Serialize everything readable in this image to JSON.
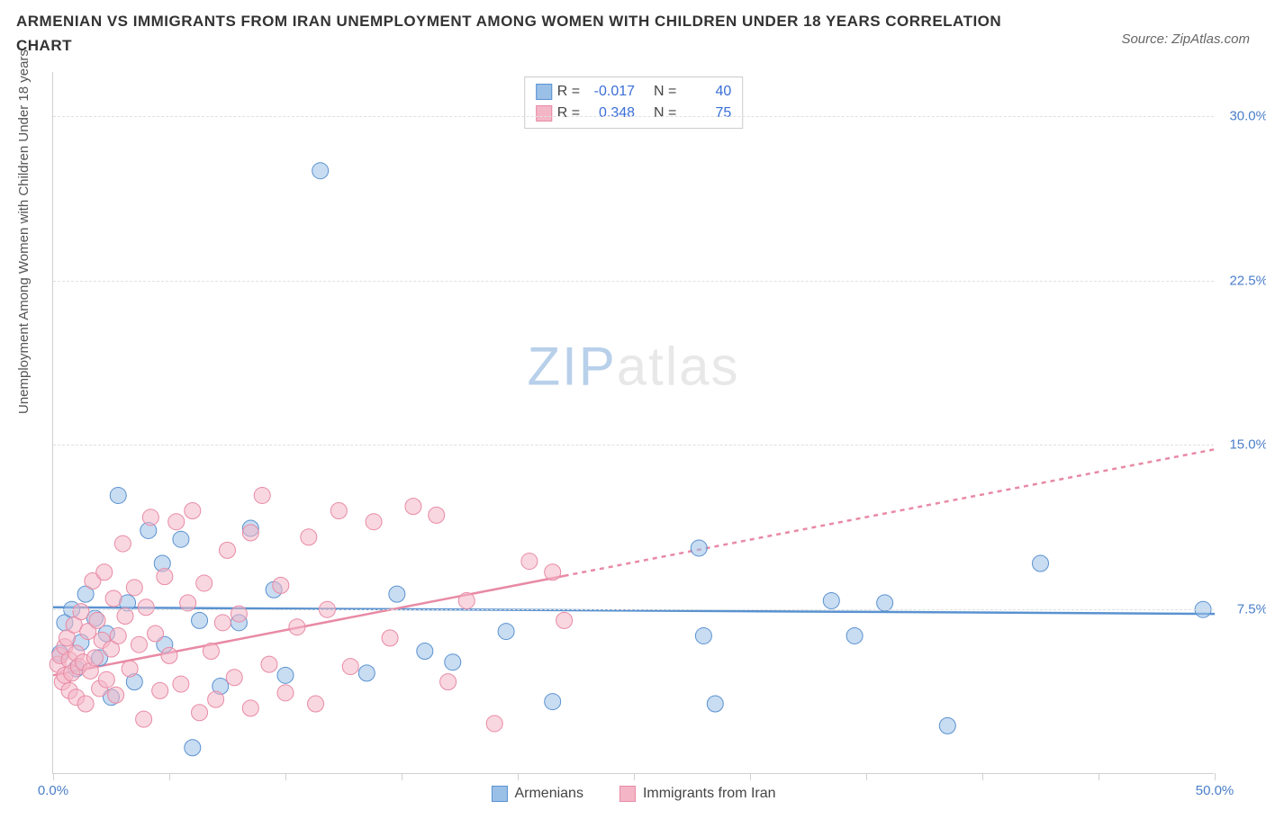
{
  "title": "ARMENIAN VS IMMIGRANTS FROM IRAN UNEMPLOYMENT AMONG WOMEN WITH CHILDREN UNDER 18 YEARS CORRELATION CHART",
  "source": "Source: ZipAtlas.com",
  "ylabel": "Unemployment Among Women with Children Under 18 years",
  "watermark": {
    "part1": "ZIP",
    "part2": "atlas"
  },
  "chart": {
    "type": "scatter",
    "background_color": "#ffffff",
    "grid_color": "#e0e0e0",
    "axis_color": "#d0d0d0",
    "label_color": "#4a7ec8",
    "ylabel_color": "#555555",
    "title_color": "#333333",
    "xlim": [
      0,
      50
    ],
    "ylim": [
      0,
      32
    ],
    "xticks": [
      0,
      5,
      10,
      15,
      20,
      25,
      30,
      35,
      40,
      45,
      50
    ],
    "xtick_labels": {
      "0": "0.0%",
      "50": "50.0%"
    },
    "yticks": [
      7.5,
      15.0,
      22.5,
      30.0
    ],
    "ytick_labels": [
      "7.5%",
      "15.0%",
      "22.5%",
      "30.0%"
    ],
    "marker_radius": 9,
    "marker_stroke_width": 1,
    "line_stroke_width": 2.5,
    "dash_pattern": "5,5"
  },
  "series": [
    {
      "name": "Armenians",
      "color_fill": "#9bc0e8",
      "color_stroke": "#5a92d0",
      "fill_opacity": 0.55,
      "R": "-0.017",
      "N": "40",
      "trend": {
        "y_start": 7.6,
        "y_end": 7.3,
        "solid_until_x": 50
      },
      "points": [
        [
          0.3,
          5.5
        ],
        [
          0.5,
          6.9
        ],
        [
          0.8,
          7.5
        ],
        [
          1.0,
          4.8
        ],
        [
          1.2,
          6.0
        ],
        [
          1.4,
          8.2
        ],
        [
          1.8,
          7.1
        ],
        [
          2.0,
          5.3
        ],
        [
          2.3,
          6.4
        ],
        [
          2.8,
          12.7
        ],
        [
          3.2,
          7.8
        ],
        [
          3.5,
          4.2
        ],
        [
          4.1,
          11.1
        ],
        [
          4.7,
          9.6
        ],
        [
          4.8,
          5.9
        ],
        [
          5.5,
          10.7
        ],
        [
          6.0,
          1.2
        ],
        [
          6.3,
          7.0
        ],
        [
          7.2,
          4.0
        ],
        [
          8.0,
          6.9
        ],
        [
          8.5,
          11.2
        ],
        [
          9.5,
          8.4
        ],
        [
          10.0,
          4.5
        ],
        [
          11.5,
          27.5
        ],
        [
          13.5,
          4.6
        ],
        [
          14.8,
          8.2
        ],
        [
          16.0,
          5.6
        ],
        [
          17.2,
          5.1
        ],
        [
          19.5,
          6.5
        ],
        [
          21.5,
          3.3
        ],
        [
          27.8,
          10.3
        ],
        [
          28.0,
          6.3
        ],
        [
          28.5,
          3.2
        ],
        [
          33.5,
          7.9
        ],
        [
          34.5,
          6.3
        ],
        [
          35.8,
          7.8
        ],
        [
          38.5,
          2.2
        ],
        [
          42.5,
          9.6
        ],
        [
          49.5,
          7.5
        ],
        [
          2.5,
          3.5
        ]
      ]
    },
    {
      "name": "Immigrants from Iran",
      "color_fill": "#f4b6c6",
      "color_stroke": "#e88aa5",
      "fill_opacity": 0.55,
      "R": "0.348",
      "N": "75",
      "trend": {
        "y_start": 4.5,
        "y_end": 14.8,
        "solid_until_x": 22
      },
      "points": [
        [
          0.2,
          5.0
        ],
        [
          0.3,
          5.4
        ],
        [
          0.4,
          4.2
        ],
        [
          0.5,
          5.8
        ],
        [
          0.5,
          4.5
        ],
        [
          0.6,
          6.2
        ],
        [
          0.7,
          3.8
        ],
        [
          0.7,
          5.2
        ],
        [
          0.8,
          4.6
        ],
        [
          0.9,
          6.8
        ],
        [
          1.0,
          3.5
        ],
        [
          1.0,
          5.5
        ],
        [
          1.1,
          4.9
        ],
        [
          1.2,
          7.4
        ],
        [
          1.3,
          5.1
        ],
        [
          1.4,
          3.2
        ],
        [
          1.5,
          6.5
        ],
        [
          1.6,
          4.7
        ],
        [
          1.7,
          8.8
        ],
        [
          1.8,
          5.3
        ],
        [
          1.9,
          7.0
        ],
        [
          2.0,
          3.9
        ],
        [
          2.1,
          6.1
        ],
        [
          2.2,
          9.2
        ],
        [
          2.3,
          4.3
        ],
        [
          2.5,
          5.7
        ],
        [
          2.6,
          8.0
        ],
        [
          2.7,
          3.6
        ],
        [
          2.8,
          6.3
        ],
        [
          3.0,
          10.5
        ],
        [
          3.1,
          7.2
        ],
        [
          3.3,
          4.8
        ],
        [
          3.5,
          8.5
        ],
        [
          3.7,
          5.9
        ],
        [
          3.9,
          2.5
        ],
        [
          4.0,
          7.6
        ],
        [
          4.2,
          11.7
        ],
        [
          4.4,
          6.4
        ],
        [
          4.6,
          3.8
        ],
        [
          4.8,
          9.0
        ],
        [
          5.0,
          5.4
        ],
        [
          5.3,
          11.5
        ],
        [
          5.5,
          4.1
        ],
        [
          5.8,
          7.8
        ],
        [
          6.0,
          12.0
        ],
        [
          6.3,
          2.8
        ],
        [
          6.5,
          8.7
        ],
        [
          6.8,
          5.6
        ],
        [
          7.0,
          3.4
        ],
        [
          7.3,
          6.9
        ],
        [
          7.5,
          10.2
        ],
        [
          7.8,
          4.4
        ],
        [
          8.0,
          7.3
        ],
        [
          8.5,
          11.0
        ],
        [
          8.5,
          3.0
        ],
        [
          9.0,
          12.7
        ],
        [
          9.3,
          5.0
        ],
        [
          9.8,
          8.6
        ],
        [
          10.0,
          3.7
        ],
        [
          10.5,
          6.7
        ],
        [
          11.0,
          10.8
        ],
        [
          11.3,
          3.2
        ],
        [
          11.8,
          7.5
        ],
        [
          12.3,
          12.0
        ],
        [
          12.8,
          4.9
        ],
        [
          13.8,
          11.5
        ],
        [
          14.5,
          6.2
        ],
        [
          15.5,
          12.2
        ],
        [
          16.5,
          11.8
        ],
        [
          17.0,
          4.2
        ],
        [
          17.8,
          7.9
        ],
        [
          19.0,
          2.3
        ],
        [
          20.5,
          9.7
        ],
        [
          21.5,
          9.2
        ],
        [
          22.0,
          7.0
        ]
      ]
    }
  ],
  "corr_legend": {
    "R_label": "R =",
    "N_label": "N ="
  },
  "bottom_legend": [
    "Armenians",
    "Immigrants from Iran"
  ]
}
